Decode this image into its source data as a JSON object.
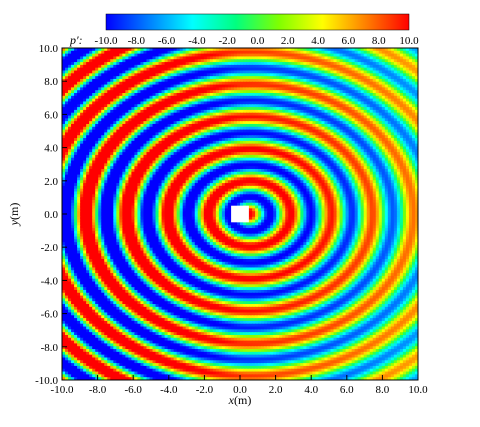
{
  "chart_data": {
    "type": "heatmap",
    "title": "",
    "xlabel": "x",
    "xlabel_unit": "(m)",
    "ylabel": "y",
    "ylabel_unit": "(m)",
    "xlim": [
      -10,
      10
    ],
    "ylim": [
      -10,
      10
    ],
    "x_ticks": [
      "-10.0",
      "-8.0",
      "-6.0",
      "-4.0",
      "-2.0",
      "0.0",
      "2.0",
      "4.0",
      "6.0",
      "8.0",
      "10.0"
    ],
    "y_ticks": [
      "-10.0",
      "-8.0",
      "-6.0",
      "-4.0",
      "-2.0",
      "0.0",
      "2.0",
      "4.0",
      "6.0",
      "8.0",
      "10.0"
    ],
    "colorbar": {
      "label": "p′:",
      "range": [
        -10,
        10
      ],
      "ticks": [
        "-10.0",
        "-8.0",
        "-6.0",
        "-4.0",
        "-2.0",
        "0.0",
        "2.0",
        "4.0",
        "6.0",
        "8.0",
        "10.0"
      ],
      "colormap": [
        "#0000ff",
        "#0080ff",
        "#00ffff",
        "#00ff80",
        "#80ff00",
        "#ffff00",
        "#ff8000",
        "#ff0000"
      ]
    },
    "obstacle": {
      "x_range": [
        -0.5,
        0.5
      ],
      "y_range": [
        -0.5,
        0.5
      ],
      "color": "#ffffff"
    },
    "description_of_field": "concentric pressure wave fronts emanating around obstacle near origin",
    "grid": false
  }
}
